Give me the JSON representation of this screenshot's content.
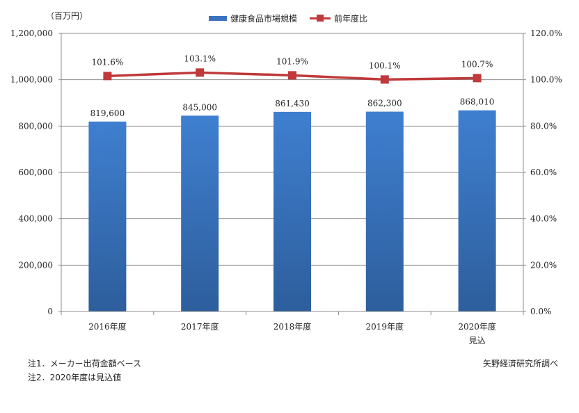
{
  "unit_label": "（百万円）",
  "legend": {
    "bar_label": "健康食品市場規模",
    "line_label": "前年度比"
  },
  "colors": {
    "bar": "#3c73c0",
    "line": "#c0393b"
  },
  "chart_data": {
    "type": "bar",
    "categories": [
      "2016年度",
      "2017年度",
      "2018年度",
      "2019年度",
      "2020年度"
    ],
    "category_sub": [
      "",
      "",
      "",
      "",
      "見込"
    ],
    "series": [
      {
        "name": "健康食品市場規模",
        "type": "bar",
        "axis": "left",
        "values": [
          819600,
          845000,
          861430,
          862300,
          868010
        ],
        "labels": [
          "819,600",
          "845,000",
          "861,430",
          "862,300",
          "868,010"
        ]
      },
      {
        "name": "前年度比",
        "type": "line",
        "axis": "right",
        "values": [
          101.6,
          103.1,
          101.9,
          100.1,
          100.7
        ],
        "labels": [
          "101.6%",
          "103.1%",
          "101.9%",
          "100.1%",
          "100.7%"
        ]
      }
    ],
    "y_left": {
      "range": [
        0,
        1200000
      ],
      "ticks": [
        0,
        200000,
        400000,
        600000,
        800000,
        1000000,
        1200000
      ],
      "tick_labels": [
        "0",
        "200,000",
        "400,000",
        "600,000",
        "800,000",
        "1,000,000",
        "1,200,000"
      ]
    },
    "y_right": {
      "range": [
        0,
        120
      ],
      "ticks": [
        0,
        20,
        40,
        60,
        80,
        100,
        120
      ],
      "tick_labels": [
        "0.0%",
        "20.0%",
        "40.0%",
        "60.0%",
        "80.0%",
        "100.0%",
        "120.0%"
      ]
    },
    "grid": true,
    "legend_position": "top"
  },
  "notes": {
    "note1": "注1．メーカー出荷金額ベース",
    "note2": "注2．2020年度は見込値",
    "source": "矢野経済研究所調べ"
  }
}
